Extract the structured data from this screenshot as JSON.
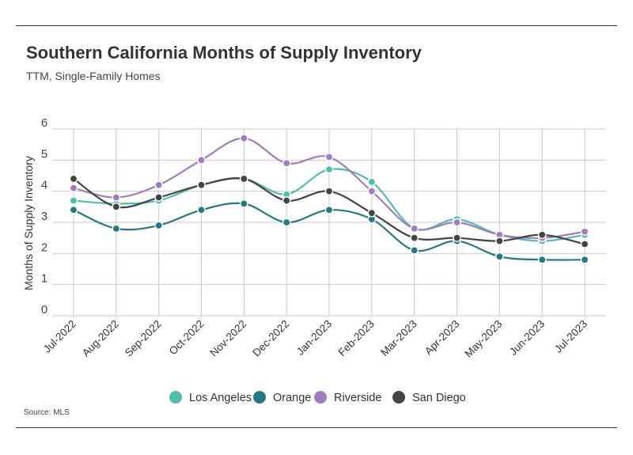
{
  "header": {
    "title": "Southern California Months of Supply Inventory",
    "subtitle": "TTM, Single-Family Homes"
  },
  "footer": {
    "source": "Source: MLS"
  },
  "chart_data": {
    "type": "line",
    "title": "Southern California Months of Supply Inventory",
    "subtitle": "TTM, Single-Family Homes",
    "xlabel": "",
    "ylabel": "Months of Supply Inventory",
    "ylim": [
      0,
      6
    ],
    "yticks": [
      0,
      1,
      2,
      3,
      4,
      5,
      6
    ],
    "grid": true,
    "legend_position": "bottom",
    "categories": [
      "Jul-2022",
      "Aug-2022",
      "Sep-2022",
      "Oct-2022",
      "Nov-2022",
      "Dec-2022",
      "Jan-2023",
      "Feb-2023",
      "Mar-2023",
      "Apr-2023",
      "May-2023",
      "Jun-2023",
      "Jul-2023"
    ],
    "series": [
      {
        "name": "Los Angeles",
        "color": "#4dbfad",
        "values": [
          3.7,
          3.6,
          3.7,
          4.2,
          4.4,
          3.9,
          4.7,
          4.3,
          2.8,
          3.1,
          2.6,
          2.4,
          2.6
        ]
      },
      {
        "name": "Orange",
        "color": "#237a85",
        "values": [
          3.4,
          2.8,
          2.9,
          3.4,
          3.6,
          3.0,
          3.4,
          3.1,
          2.1,
          2.4,
          1.9,
          1.8,
          1.8
        ]
      },
      {
        "name": "Riverside",
        "color": "#a07cc0",
        "values": [
          4.1,
          3.8,
          4.2,
          5.0,
          5.7,
          4.9,
          5.1,
          4.0,
          2.8,
          3.0,
          2.6,
          2.5,
          2.7
        ]
      },
      {
        "name": "San Diego",
        "color": "#444444",
        "values": [
          4.4,
          3.5,
          3.8,
          4.2,
          4.4,
          3.7,
          4.0,
          3.3,
          2.5,
          2.5,
          2.4,
          2.6,
          2.3
        ]
      }
    ]
  }
}
